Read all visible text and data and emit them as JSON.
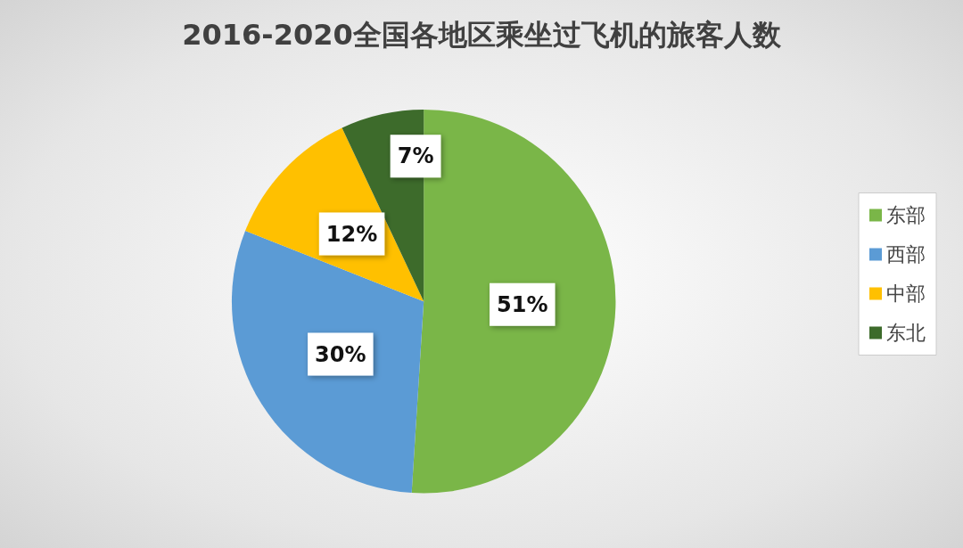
{
  "chart_data": {
    "type": "pie",
    "title": "2016-2020全国各地区乘坐过飞机的旅客人数",
    "categories": [
      "东部",
      "西部",
      "中部",
      "东北"
    ],
    "values": [
      51,
      30,
      12,
      7
    ],
    "colors": [
      "#7ab648",
      "#5b9bd5",
      "#ffc000",
      "#3d6b2b"
    ],
    "value_labels": [
      "51%",
      "30%",
      "12%",
      "7%"
    ],
    "legend": "right"
  }
}
